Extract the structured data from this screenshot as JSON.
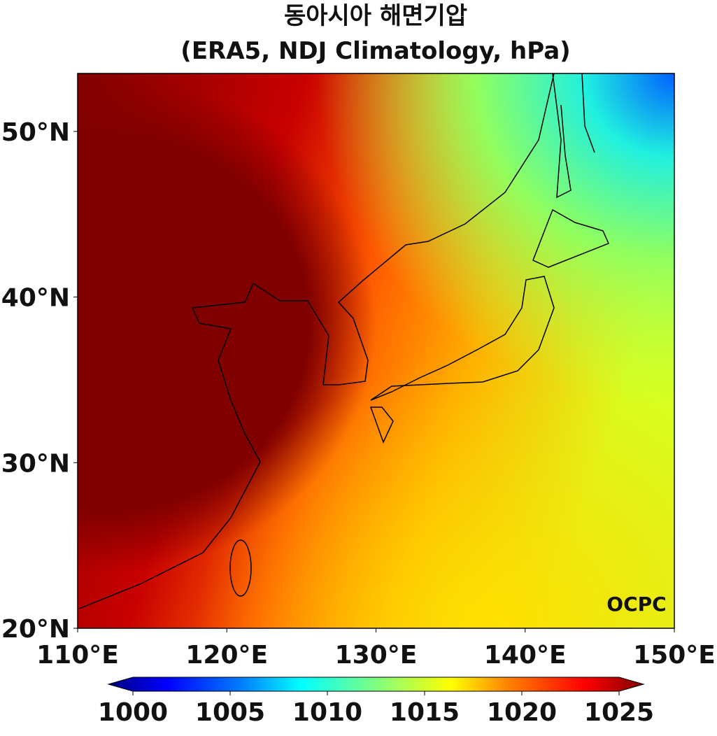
{
  "chart_data": {
    "type": "map",
    "title": "동아시아 해면기압",
    "subtitle": "(ERA5, NDJ Climatology, hPa)",
    "xlim": [
      110,
      150
    ],
    "ylim": [
      20,
      53.5
    ],
    "xticks": [
      {
        "value": 110,
        "label": "110°E"
      },
      {
        "value": 120,
        "label": "120°E"
      },
      {
        "value": 130,
        "label": "130°E"
      },
      {
        "value": 140,
        "label": "140°E"
      },
      {
        "value": 150,
        "label": "150°E"
      }
    ],
    "yticks": [
      {
        "value": 20,
        "label": "20°N"
      },
      {
        "value": 30,
        "label": "30°N"
      },
      {
        "value": 40,
        "label": "40°N"
      },
      {
        "value": 50,
        "label": "50°N"
      }
    ],
    "colorbar": {
      "lim": [
        1000,
        1025
      ],
      "ticks": [
        1000,
        1005,
        1010,
        1015,
        1020,
        1025
      ]
    },
    "watermark": "OCPC"
  }
}
